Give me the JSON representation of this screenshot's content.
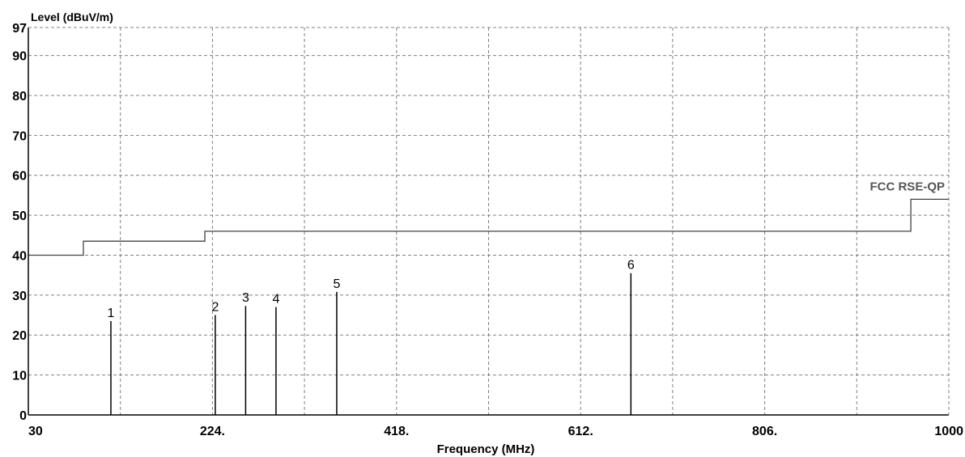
{
  "chart_data": {
    "type": "line",
    "title": "",
    "ylabel": "Level (dBuV/m)",
    "xlabel": "Frequency (MHz)",
    "xlim": [
      30,
      1000
    ],
    "ylim": [
      0,
      97
    ],
    "x_ticks": [
      30,
      224,
      418,
      612,
      806,
      1000
    ],
    "x_tick_labels": [
      "30",
      "224.",
      "418.",
      "612.",
      "806.",
      "1000"
    ],
    "y_ticks": [
      0,
      10,
      20,
      30,
      40,
      50,
      60,
      70,
      80,
      90,
      97
    ],
    "y_tick_labels": [
      "0",
      "10",
      "20",
      "30",
      "40",
      "50",
      "60",
      "70",
      "80",
      "90",
      "97"
    ],
    "x_minor_gridlines": [
      127,
      321,
      515,
      709,
      903
    ],
    "grid": true,
    "limit_line": {
      "name": "FCC RSE-QP",
      "points": [
        [
          30,
          40
        ],
        [
          88,
          40
        ],
        [
          88,
          43.5
        ],
        [
          216,
          43.5
        ],
        [
          216,
          46
        ],
        [
          960,
          46
        ],
        [
          960,
          54
        ],
        [
          1000,
          54
        ]
      ]
    },
    "markers": [
      {
        "label": "1",
        "x": 117,
        "y": 23.5
      },
      {
        "label": "2",
        "x": 227,
        "y": 25.0
      },
      {
        "label": "3",
        "x": 259,
        "y": 27.3
      },
      {
        "label": "4",
        "x": 291,
        "y": 27.0
      },
      {
        "label": "5",
        "x": 355,
        "y": 30.8
      },
      {
        "label": "6",
        "x": 665,
        "y": 35.5
      }
    ],
    "colors": {
      "grid": "#808080",
      "limit": "#404040",
      "markers": "#000000",
      "axis": "#000000"
    }
  }
}
